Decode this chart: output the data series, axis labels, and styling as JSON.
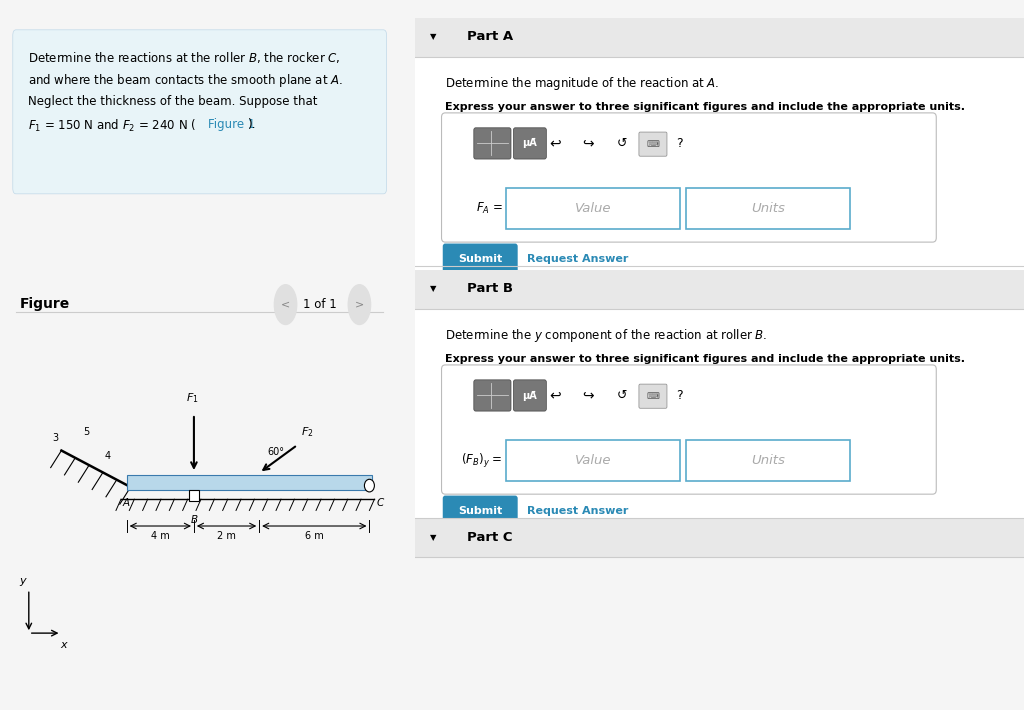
{
  "bg_color": "#f5f5f5",
  "problem_box_bg": "#e8f4f8",
  "part_a_header": "Part A",
  "part_a_desc": "Determine the magnitude of the reaction at $\\mathit{A}$.",
  "part_a_bold": "Express your answer to three significant figures and include the appropriate units.",
  "part_b_header": "Part B",
  "part_b_desc": "Determine the $y$ component of the reaction at roller $\\mathit{B}$.",
  "part_b_bold": "Express your answer to three significant figures and include the appropriate units.",
  "part_c_header": "Part C",
  "submit_color": "#2b8ab5",
  "link_color": "#2b8ab5",
  "header_bg": "#e8e8e8",
  "input_border": "#5aabcc",
  "white": "#ffffff",
  "light_gray": "#f0f0f0",
  "divider_color": "#cccccc",
  "toolbar_dark": "#777777",
  "text_black": "#000000",
  "text_gray": "#aaaaaa"
}
